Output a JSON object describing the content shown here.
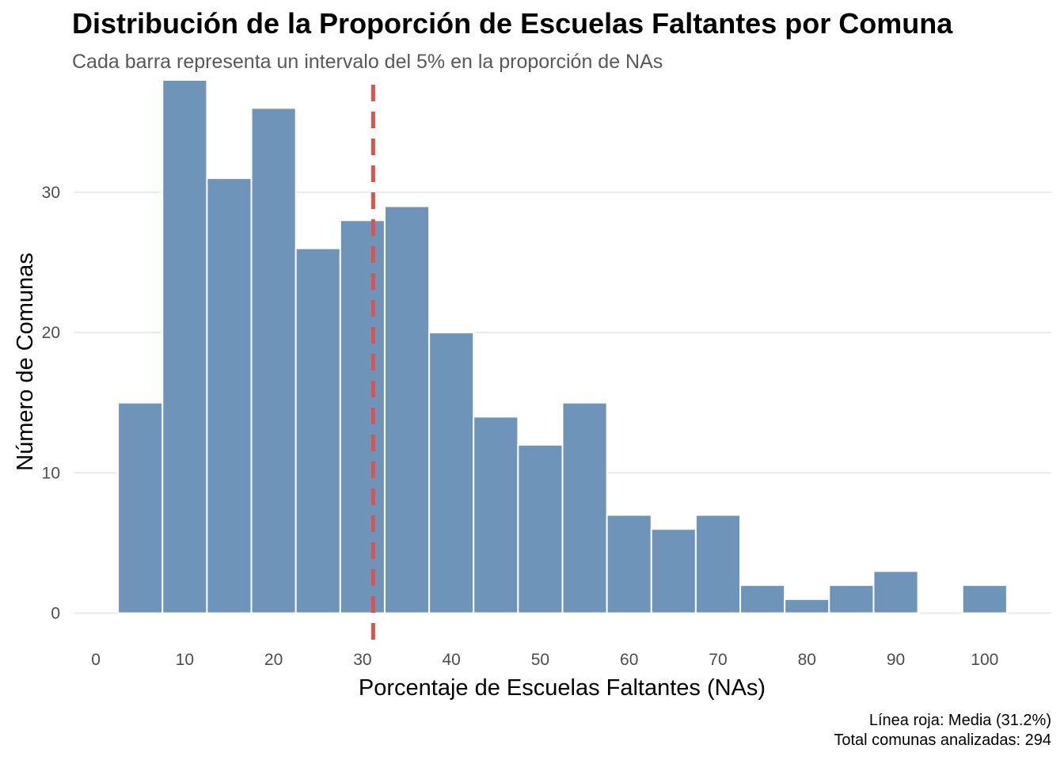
{
  "chart_data": {
    "type": "bar",
    "title": "Distribución de la Proporción de Escuelas Faltantes por Comuna",
    "subtitle": "Cada barra representa un intervalo del 5% en la proporción de NAs",
    "xlabel": "Porcentaje de Escuelas Faltantes (NAs)",
    "ylabel": "Número de Comunas",
    "caption": [
      "Línea roja: Media (31.2%)",
      "Total comunas analizadas: 294"
    ],
    "bin_width": 5,
    "bin_centers": [
      5,
      10,
      15,
      20,
      25,
      30,
      35,
      40,
      45,
      50,
      55,
      60,
      65,
      70,
      75,
      80,
      85,
      90,
      95,
      100
    ],
    "values": [
      15,
      38,
      31,
      36,
      26,
      28,
      29,
      20,
      14,
      12,
      15,
      7,
      6,
      7,
      2,
      1,
      2,
      3,
      0,
      2
    ],
    "mean_line": {
      "value": 31.2,
      "color": "#D9534F"
    },
    "bar_color": "#6F94BA",
    "xlim": [
      -2.5,
      107.5
    ],
    "ylim": [
      -2,
      38
    ],
    "x_ticks": [
      0,
      10,
      20,
      30,
      40,
      50,
      60,
      70,
      80,
      90,
      100
    ],
    "y_ticks": [
      0,
      10,
      20,
      30
    ],
    "grid": true
  }
}
